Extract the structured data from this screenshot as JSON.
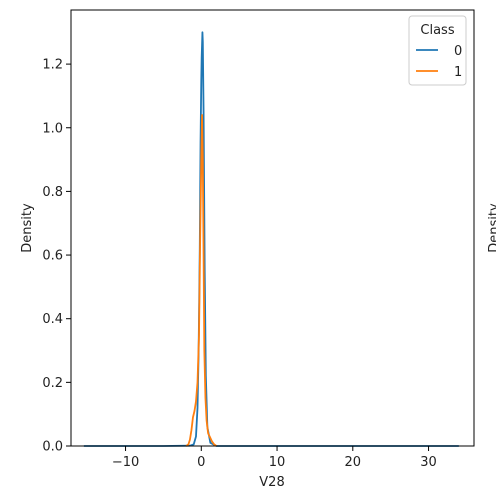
{
  "chart_data": {
    "type": "line",
    "xlabel": "V28",
    "ylabel": "Density",
    "xlim": [
      -17.2,
      36.0
    ],
    "ylim": [
      0,
      1.37
    ],
    "xticks": [
      -10,
      0,
      10,
      20,
      30
    ],
    "xtick_labels": [
      "−10",
      "0",
      "10",
      "20",
      "30"
    ],
    "yticks": [
      0.0,
      0.2,
      0.4,
      0.6,
      0.8,
      1.0,
      1.2
    ],
    "ytick_labels": [
      "0.0",
      "0.2",
      "0.4",
      "0.6",
      "0.8",
      "1.0",
      "1.2"
    ],
    "grid": false,
    "legend": {
      "title": "Class",
      "placement": "upper-right"
    },
    "series": [
      {
        "name": "0",
        "color": "#1f77b4",
        "x": [
          -15.5,
          -5.0,
          -1.5,
          -1.0,
          -0.7,
          -0.5,
          -0.35,
          -0.2,
          -0.1,
          0.0,
          0.05,
          0.1,
          0.15,
          0.2,
          0.3,
          0.45,
          0.6,
          0.8,
          1.2,
          2.0,
          10.0,
          20.0,
          34.0
        ],
        "y": [
          0.0,
          0.0,
          0.001,
          0.005,
          0.03,
          0.12,
          0.3,
          0.62,
          0.95,
          1.15,
          1.22,
          1.26,
          1.3,
          1.27,
          1.05,
          0.55,
          0.22,
          0.06,
          0.01,
          0.0,
          0.0,
          0.0,
          0.0
        ]
      },
      {
        "name": "1",
        "color": "#ff7f0e",
        "x": [
          -2.0,
          -1.7,
          -1.5,
          -1.3,
          -1.1,
          -0.9,
          -0.7,
          -0.5,
          -0.3,
          -0.15,
          0.0,
          0.1,
          0.2,
          0.3,
          0.4,
          0.55,
          0.7,
          0.9,
          1.1,
          1.4,
          1.7,
          2.0
        ],
        "y": [
          0.0,
          0.005,
          0.02,
          0.05,
          0.09,
          0.11,
          0.14,
          0.2,
          0.35,
          0.65,
          0.9,
          1.04,
          0.9,
          0.6,
          0.3,
          0.15,
          0.08,
          0.04,
          0.03,
          0.015,
          0.005,
          0.0
        ]
      }
    ]
  }
}
